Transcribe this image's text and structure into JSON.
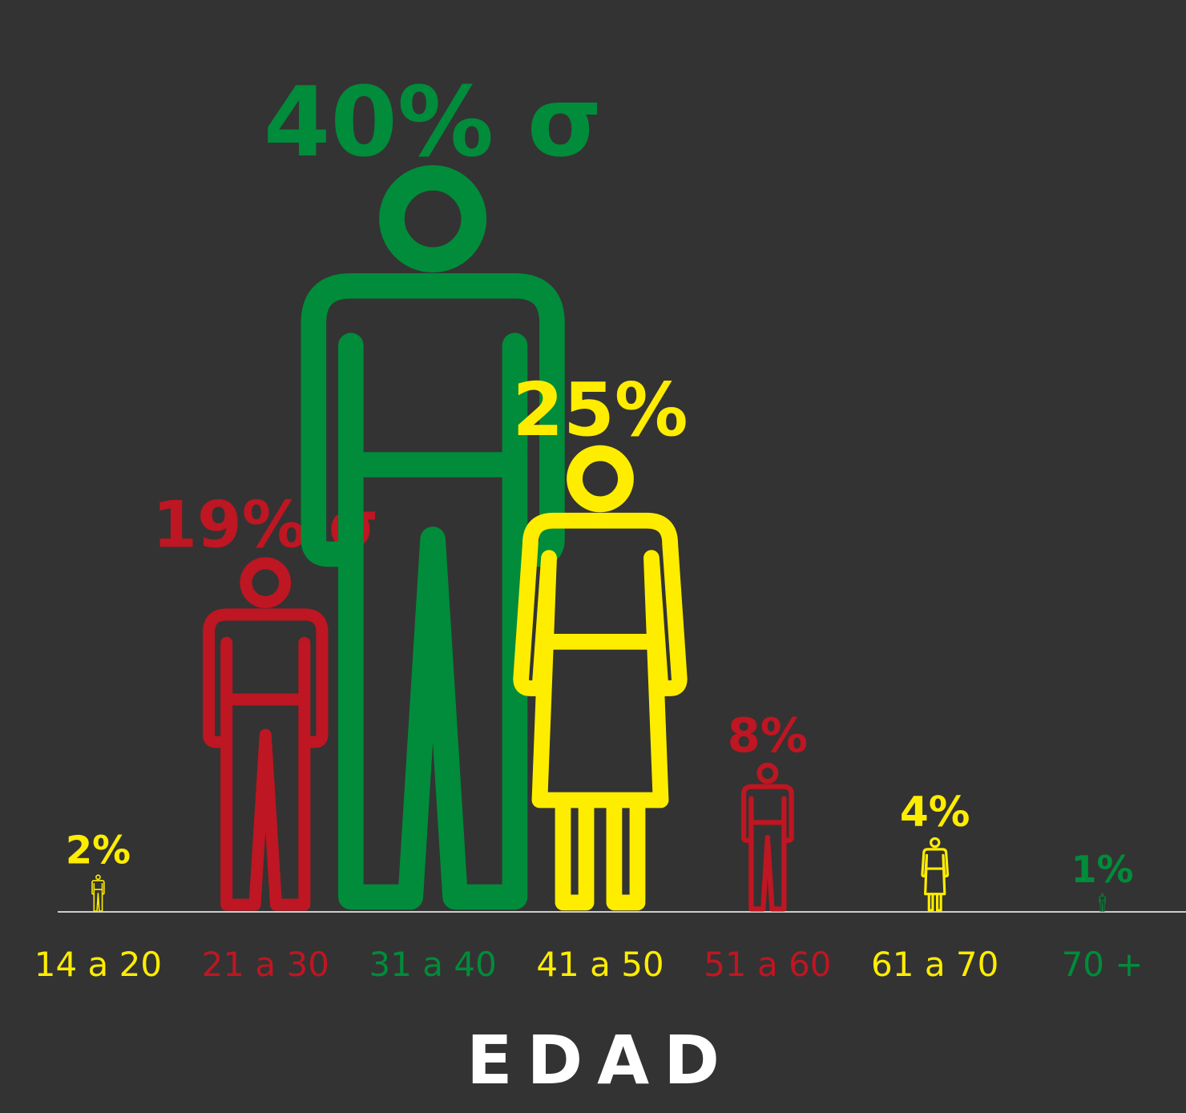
{
  "chart_data": {
    "type": "pictograph",
    "categories": [
      "14 a 20",
      "21 a 30",
      "31 a 40",
      "41 a 50",
      "51 a 60",
      "61 a 70",
      "70 +"
    ],
    "values": [
      2,
      19,
      40,
      25,
      8,
      4,
      1
    ],
    "value_labels": [
      "2%",
      "19% σ",
      "40% σ",
      "25%",
      "8%",
      "4%",
      "1%"
    ],
    "colors": [
      "#ffed00",
      "#be1622",
      "#008c3a",
      "#ffed00",
      "#be1622",
      "#ffed00",
      "#008c3a"
    ],
    "figures": [
      "male",
      "male",
      "male",
      "female",
      "male",
      "female",
      "male"
    ],
    "x_label": "EDAD"
  }
}
